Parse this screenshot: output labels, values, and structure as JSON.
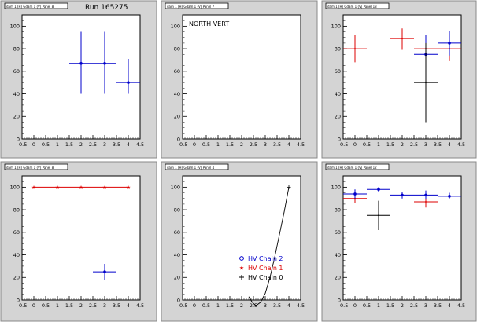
{
  "window": {
    "title": "Run 165275"
  },
  "colors": {
    "blue": "#0000cc",
    "red": "#dd0000",
    "black": "#000000",
    "frame": "#d4d4d4"
  },
  "legend": {
    "entries": [
      {
        "label": "HV Chain 2",
        "color": "#0000cc",
        "marker": "circle"
      },
      {
        "label": "HV Chain 1",
        "color": "#dd0000",
        "marker": "star"
      },
      {
        "label": "HV Chain 0",
        "color": "#000000",
        "marker": "cross"
      }
    ]
  },
  "chart_data": [
    {
      "type": "scatter",
      "panel_title": "dam 1 (H) Gdam 1 (V) Panel 8",
      "title": "Run 165275",
      "xlim": [
        -0.5,
        4.5
      ],
      "ylim": [
        0,
        110
      ],
      "x_ticks": [
        "-0.5",
        "0",
        "0.5",
        "1",
        "1.5",
        "2",
        "2.5",
        "3",
        "3.5",
        "4",
        "4.5"
      ],
      "y_ticks": [
        "0",
        "20",
        "40",
        "60",
        "80",
        "100"
      ],
      "series": [
        {
          "color": "#0000cc",
          "points": [
            {
              "x": 2,
              "y": 67,
              "xerr": 0.5,
              "ylo": 40,
              "yhi": 95
            },
            {
              "x": 3,
              "y": 67,
              "xerr": 0.5,
              "ylo": 40,
              "yhi": 95
            },
            {
              "x": 4,
              "y": 50,
              "xerr": 0.5,
              "ylo": 40,
              "yhi": 71
            }
          ]
        }
      ]
    },
    {
      "type": "scatter",
      "panel_title": "dam 1 (H) Gdam 1 (V) Panel 7",
      "annotation": "NORTH VERT",
      "xlim": [
        -0.5,
        4.5
      ],
      "ylim": [
        0,
        110
      ],
      "x_ticks": [
        "-0.5",
        "0",
        "0.5",
        "1",
        "1.5",
        "2",
        "2.5",
        "3",
        "3.5",
        "4",
        "4.5"
      ],
      "y_ticks": [
        "0",
        "20",
        "40",
        "60",
        "80",
        "100"
      ],
      "series": []
    },
    {
      "type": "scatter",
      "panel_title": "dam 1 (H) Gdam 1 (V) Panel 13",
      "xlim": [
        -0.5,
        4.5
      ],
      "ylim": [
        0,
        110
      ],
      "x_ticks": [
        "-0.5",
        "0",
        "0.5",
        "1",
        "1.5",
        "2",
        "2.5",
        "3",
        "3.5",
        "4",
        "4.5"
      ],
      "y_ticks": [
        "0",
        "20",
        "40",
        "60",
        "80",
        "100"
      ],
      "series": [
        {
          "color": "#dd0000",
          "points": [
            {
              "x": 0,
              "y": 80,
              "xerr": 0.5,
              "ylo": 68,
              "yhi": 92
            },
            {
              "x": 2,
              "y": 89,
              "xerr": 0.5,
              "ylo": 79,
              "yhi": 98
            },
            {
              "x": 3,
              "y": 80,
              "xerr": 0.5,
              "ylo": 69,
              "yhi": 91
            },
            {
              "x": 4,
              "y": 80,
              "xerr": 0.5,
              "ylo": 69,
              "yhi": 91
            }
          ]
        },
        {
          "color": "#0000cc",
          "points": [
            {
              "x": 3,
              "y": 75,
              "xerr": 0.5,
              "ylo": 58,
              "yhi": 92
            },
            {
              "x": 4,
              "y": 85,
              "xerr": 0.5,
              "ylo": 74,
              "yhi": 96
            }
          ]
        },
        {
          "color": "#000000",
          "points": [
            {
              "x": 3,
              "y": 50,
              "xerr": 0.5,
              "ylo": 15,
              "yhi": 85
            }
          ]
        }
      ]
    },
    {
      "type": "scatter",
      "panel_title": "dam 1 (H) Gdam 1 (V) Panel 8",
      "xlim": [
        -0.5,
        4.5
      ],
      "ylim": [
        0,
        110
      ],
      "x_ticks": [
        "-0.5",
        "0",
        "0.5",
        "1",
        "1.5",
        "2",
        "2.5",
        "3",
        "3.5",
        "4",
        "4.5"
      ],
      "y_ticks": [
        "0",
        "20",
        "40",
        "60",
        "80",
        "100"
      ],
      "series": [
        {
          "color": "#dd0000",
          "marker": "star",
          "connect": true,
          "points": [
            {
              "x": 0,
              "y": 100
            },
            {
              "x": 1,
              "y": 100
            },
            {
              "x": 2,
              "y": 100
            },
            {
              "x": 3,
              "y": 100
            },
            {
              "x": 4,
              "y": 100
            }
          ]
        },
        {
          "color": "#0000cc",
          "points": [
            {
              "x": 3,
              "y": 25,
              "xerr": 0.5,
              "ylo": 18,
              "yhi": 32
            }
          ]
        }
      ]
    },
    {
      "type": "line",
      "panel_title": "dam 1 (H) Gdam 1 (V) Panel 4",
      "xlim": [
        -0.5,
        4.5
      ],
      "ylim": [
        0,
        110
      ],
      "x_ticks": [
        "-0.5",
        "0",
        "0.5",
        "1",
        "1.5",
        "2",
        "2.5",
        "3",
        "3.5",
        "4",
        "4.5"
      ],
      "y_ticks": [
        "0",
        "20",
        "40",
        "60",
        "80",
        "100"
      ],
      "curve": {
        "color": "#000000",
        "points": [
          {
            "x": 2.3,
            "y": 3
          },
          {
            "x": 2.45,
            "y": -2
          },
          {
            "x": 2.6,
            "y": -5
          },
          {
            "x": 2.8,
            "y": -2
          },
          {
            "x": 3.0,
            "y": 6
          },
          {
            "x": 3.2,
            "y": 20
          },
          {
            "x": 3.4,
            "y": 38
          },
          {
            "x": 3.6,
            "y": 58
          },
          {
            "x": 3.8,
            "y": 78
          },
          {
            "x": 4.0,
            "y": 100
          }
        ]
      },
      "marker_points": [
        {
          "x": 4.0,
          "y": 100
        }
      ],
      "has_legend": true
    },
    {
      "type": "scatter",
      "panel_title": "dam 1 (H) Gdam 1 (V) Panel 12",
      "xlim": [
        -0.5,
        4.5
      ],
      "ylim": [
        0,
        110
      ],
      "x_ticks": [
        "-0.5",
        "0",
        "0.5",
        "1",
        "1.5",
        "2",
        "2.5",
        "3",
        "3.5",
        "4",
        "4.5"
      ],
      "y_ticks": [
        "0",
        "20",
        "40",
        "60",
        "80",
        "100"
      ],
      "series": [
        {
          "color": "#dd0000",
          "points": [
            {
              "x": 0,
              "y": 90,
              "xerr": 0.5,
              "ylo": 86,
              "yhi": 94
            },
            {
              "x": 3,
              "y": 87,
              "xerr": 0.5,
              "ylo": 82,
              "yhi": 92
            }
          ]
        },
        {
          "color": "#0000cc",
          "points": [
            {
              "x": 0,
              "y": 94,
              "xerr": 0.5,
              "ylo": 90,
              "yhi": 98
            },
            {
              "x": 1,
              "y": 98,
              "xerr": 0.5,
              "ylo": 96,
              "yhi": 100
            },
            {
              "x": 2,
              "y": 93,
              "xerr": 0.5,
              "ylo": 90,
              "yhi": 96
            },
            {
              "x": 3,
              "y": 93,
              "xerr": 0.5,
              "ylo": 89,
              "yhi": 97
            },
            {
              "x": 4,
              "y": 92,
              "xerr": 0.5,
              "ylo": 90,
              "yhi": 95
            }
          ]
        },
        {
          "color": "#000000",
          "points": [
            {
              "x": 1,
              "y": 75,
              "xerr": 0.5,
              "ylo": 62,
              "yhi": 88
            }
          ]
        }
      ]
    }
  ]
}
